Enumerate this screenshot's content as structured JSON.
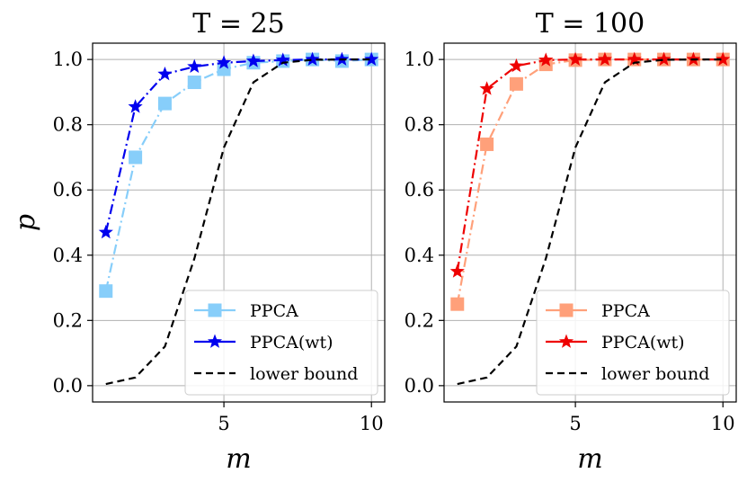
{
  "chart_data": [
    {
      "type": "line",
      "title": "T = 25",
      "xlabel": "m",
      "ylabel": "p",
      "xlim": [
        0.55,
        10.45
      ],
      "ylim": [
        -0.05,
        1.05
      ],
      "xticks": [
        5,
        10
      ],
      "xtick_labels": [
        "5",
        "10"
      ],
      "yticks": [
        0.0,
        0.2,
        0.4,
        0.6,
        0.8,
        1.0
      ],
      "ytick_labels": [
        "0.0",
        "0.2",
        "0.4",
        "0.6",
        "0.8",
        "1.0"
      ],
      "grid": true,
      "legend_position": "lower-right",
      "x": [
        1,
        2,
        3,
        4,
        5,
        6,
        7,
        8,
        9,
        10
      ],
      "series": [
        {
          "name": "PPCA",
          "color": "#87cefa",
          "linestyle": "dashdot",
          "marker": "square",
          "values": [
            0.29,
            0.7,
            0.865,
            0.93,
            0.97,
            0.99,
            0.995,
            1.0,
            0.995,
            1.0
          ]
        },
        {
          "name": "PPCA(wt)",
          "color": "#0000ee",
          "linestyle": "dashdot",
          "marker": "star",
          "values": [
            0.47,
            0.855,
            0.955,
            0.978,
            0.99,
            0.995,
            0.998,
            1.0,
            1.0,
            1.0
          ]
        },
        {
          "name": "lower bound",
          "color": "#000000",
          "linestyle": "dashed",
          "marker": "none",
          "values": [
            0.005,
            0.025,
            0.12,
            0.39,
            0.73,
            0.93,
            0.99,
            0.999,
            1.0,
            1.0
          ]
        }
      ]
    },
    {
      "type": "line",
      "title": "T = 100",
      "xlabel": "m",
      "ylabel": "",
      "xlim": [
        0.55,
        10.45
      ],
      "ylim": [
        -0.05,
        1.05
      ],
      "xticks": [
        5,
        10
      ],
      "xtick_labels": [
        "5",
        "10"
      ],
      "yticks": [
        0.0,
        0.2,
        0.4,
        0.6,
        0.8,
        1.0
      ],
      "ytick_labels": [
        "0.0",
        "0.2",
        "0.4",
        "0.6",
        "0.8",
        "1.0"
      ],
      "grid": true,
      "legend_position": "lower-right",
      "x": [
        1,
        2,
        3,
        4,
        5,
        6,
        7,
        8,
        9,
        10
      ],
      "series": [
        {
          "name": "PPCA",
          "color": "#ffa07a",
          "linestyle": "dashdot",
          "marker": "square",
          "values": [
            0.25,
            0.74,
            0.925,
            0.985,
            0.998,
            1.0,
            1.0,
            1.0,
            1.0,
            1.0
          ]
        },
        {
          "name": "PPCA(wt)",
          "color": "#ee0000",
          "linestyle": "dashdot",
          "marker": "star",
          "values": [
            0.35,
            0.91,
            0.98,
            0.998,
            1.0,
            1.0,
            1.0,
            1.0,
            1.0,
            1.0
          ]
        },
        {
          "name": "lower bound",
          "color": "#000000",
          "linestyle": "dashed",
          "marker": "none",
          "values": [
            0.005,
            0.025,
            0.12,
            0.39,
            0.73,
            0.93,
            0.99,
            0.999,
            1.0,
            1.0
          ]
        }
      ]
    }
  ]
}
